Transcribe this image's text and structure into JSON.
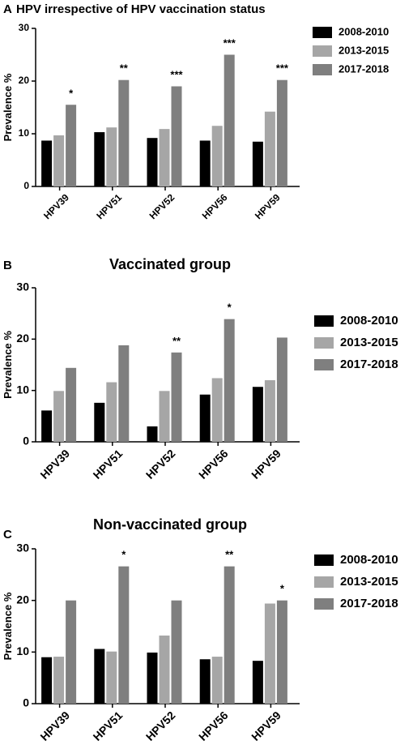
{
  "chart_data": [
    {
      "type": "bar",
      "panel": "A",
      "title": "HPV irrespective of HPV vaccination status",
      "y_label": "Prevalence %",
      "categories": [
        "HPV39",
        "HPV51",
        "HPV52",
        "HPV56",
        "HPV59"
      ],
      "series": [
        {
          "name": "2008-2010",
          "color": "#000000",
          "values": [
            8.7,
            10.3,
            9.2,
            8.7,
            8.5
          ]
        },
        {
          "name": "2013-2015",
          "color": "#a6a6a6",
          "values": [
            9.7,
            11.2,
            10.9,
            11.5,
            14.2
          ]
        },
        {
          "name": "2017-2018",
          "color": "#7f7f7f",
          "values": [
            15.5,
            20.2,
            19.0,
            25.0,
            20.2
          ]
        }
      ],
      "annotations": [
        "*",
        "**",
        "***",
        "***",
        "***"
      ],
      "ylim": [
        0,
        30
      ],
      "yticks": [
        0,
        10,
        20,
        30
      ]
    },
    {
      "type": "bar",
      "panel": "B",
      "title": "Vaccinated group",
      "y_label": "Prevalence %",
      "categories": [
        "HPV39",
        "HPV51",
        "HPV52",
        "HPV56",
        "HPV59"
      ],
      "series": [
        {
          "name": "2008-2010",
          "color": "#000000",
          "values": [
            6.1,
            7.6,
            3.0,
            9.2,
            10.7
          ]
        },
        {
          "name": "2013-2015",
          "color": "#a6a6a6",
          "values": [
            9.9,
            11.6,
            9.9,
            12.4,
            12.0
          ]
        },
        {
          "name": "2017-2018",
          "color": "#7f7f7f",
          "values": [
            14.4,
            18.8,
            17.4,
            23.9,
            20.3
          ]
        }
      ],
      "annotations": [
        null,
        null,
        "**",
        "*",
        null
      ],
      "ylim": [
        0,
        30
      ],
      "yticks": [
        0,
        10,
        20,
        30
      ]
    },
    {
      "type": "bar",
      "panel": "C",
      "title": "Non-vaccinated group",
      "y_label": "Prevalence %",
      "categories": [
        "HPV39",
        "HPV51",
        "HPV52",
        "HPV56",
        "HPV59"
      ],
      "series": [
        {
          "name": "2008-2010",
          "color": "#000000",
          "values": [
            9.0,
            10.6,
            9.9,
            8.6,
            8.3
          ]
        },
        {
          "name": "2013-2015",
          "color": "#a6a6a6",
          "values": [
            9.1,
            10.1,
            13.2,
            9.1,
            19.4
          ]
        },
        {
          "name": "2017-2018",
          "color": "#7f7f7f",
          "values": [
            20.0,
            26.6,
            20.0,
            26.6,
            20.0
          ]
        }
      ],
      "annotations": [
        null,
        "*",
        null,
        "**",
        "*"
      ],
      "ylim": [
        0,
        30
      ],
      "yticks": [
        0,
        10,
        20,
        30
      ]
    }
  ]
}
